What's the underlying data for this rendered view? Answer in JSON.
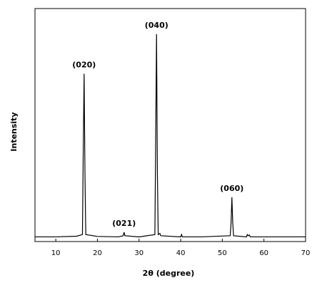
{
  "chart_data": {
    "type": "line",
    "x_label": "2θ (degree)",
    "y_label": "Intensity",
    "x": [
      5,
      10,
      15,
      16.4,
      16.6,
      16.8,
      17.0,
      17.2,
      20,
      25,
      26.2,
      26.4,
      26.6,
      30,
      33.8,
      34.0,
      34.2,
      34.4,
      34.6,
      35.0,
      35.2,
      40,
      40.2,
      40.4,
      45,
      51.9,
      52.1,
      52.3,
      52.5,
      52.7,
      55.8,
      56.0,
      56.2,
      56.5,
      56.7,
      60,
      65,
      70
    ],
    "series": [
      {
        "color": "#000000",
        "values": [
          2,
          2,
          2.3,
          3,
          40,
          72,
          30,
          3,
          2.2,
          2,
          2.5,
          4,
          2.5,
          2,
          3,
          45,
          89,
          30,
          3,
          3.5,
          2.5,
          2,
          3,
          2,
          2,
          2.5,
          8,
          19,
          8,
          2.5,
          2,
          3,
          2.5,
          2.8,
          2,
          2,
          2,
          2
        ]
      }
    ],
    "annotations": [
      {
        "text": "(020)",
        "x": 16.8
      },
      {
        "text": "(021)",
        "x": 26.4
      },
      {
        "text": "(040)",
        "x": 34.2
      },
      {
        "text": "(060)",
        "x": 52.3
      }
    ],
    "xlim": [
      5,
      70
    ],
    "xticks": [
      10,
      20,
      30,
      40,
      50,
      60,
      70
    ],
    "ylim": [
      0,
      100
    ]
  }
}
